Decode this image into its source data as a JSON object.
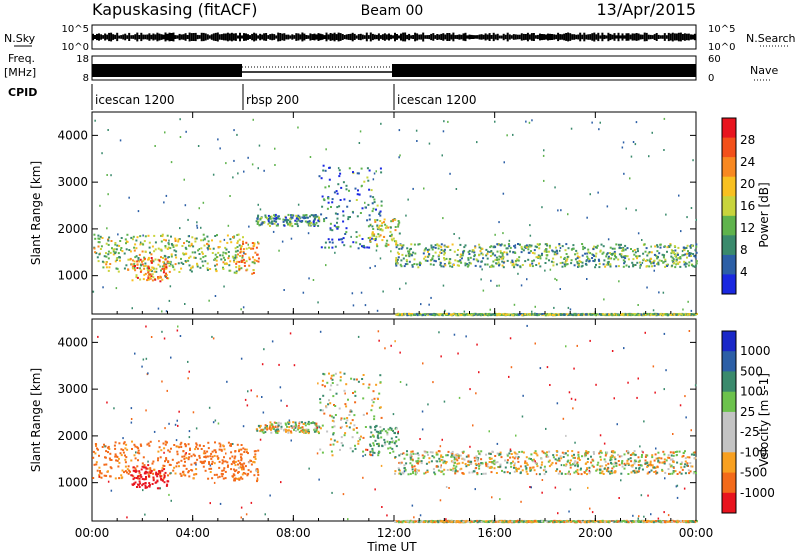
{
  "header": {
    "station": "Kapuskasing (fitACF)",
    "beam": "Beam 00",
    "date": "13/Apr/2015"
  },
  "top_panels": {
    "nsky": {
      "label": "N.Sky",
      "ticks": [
        "10^5",
        "10^0"
      ]
    },
    "nsearch": {
      "label": "N.Search",
      "ticks": [
        "10^5",
        "10^0"
      ]
    },
    "freq": {
      "label": "Freq.",
      "unit": "[MHz]",
      "ticks": [
        "18",
        "8"
      ]
    },
    "nave": {
      "label": "Nave",
      "ticks": [
        "60",
        "0"
      ]
    },
    "cpid": {
      "label": "CPID",
      "segments": [
        {
          "name": "icescan 1200",
          "start_h": 0,
          "end_h": 6
        },
        {
          "name": "rbsp 200",
          "start_h": 6,
          "end_h": 12
        },
        {
          "name": "icescan 1200",
          "start_h": 12,
          "end_h": 24
        }
      ]
    }
  },
  "power_colorbar": {
    "label": "Power [dB]",
    "ticks": [
      "28",
      "24",
      "20",
      "16",
      "12",
      "8",
      "4"
    ],
    "colors": [
      "#e8141e",
      "#f3501a",
      "#f88820",
      "#f8c020",
      "#c8d43c",
      "#5fb34c",
      "#3a8a6c",
      "#2c5fa6",
      "#1a28e0"
    ]
  },
  "velocity_colorbar": {
    "label": "Velocity [m s-1]",
    "ticks": [
      "1000",
      "500",
      "100",
      "25",
      "-25",
      "-100",
      "-500",
      "-1000"
    ],
    "colors": [
      "#1a28c8",
      "#2c5fa6",
      "#3a8a6c",
      "#6cc24c",
      "#c4c4c4",
      "#c4c4c4",
      "#f8a020",
      "#f36a1a",
      "#e8141e"
    ]
  },
  "chart_data": {
    "type": "heatmap",
    "xlabel": "Time UT",
    "ylabel": "Slant Range [km]",
    "xlim": [
      0,
      24
    ],
    "ylim": [
      180,
      4500
    ],
    "x_ticks": [
      "00:00",
      "04:00",
      "08:00",
      "12:00",
      "16:00",
      "20:00",
      "00:00"
    ],
    "y_ticks": [
      "1000",
      "2000",
      "3000",
      "4000"
    ],
    "panels": [
      {
        "name": "Power",
        "quantity": "Power [dB]",
        "range": [
          0,
          30
        ]
      },
      {
        "name": "Velocity",
        "quantity": "Velocity [m s-1]",
        "range": [
          -1000,
          1000
        ]
      }
    ],
    "scatter_features": [
      {
        "t_start": 0.0,
        "t_end": 6.0,
        "r_center": 1500,
        "r_halfwidth": 400,
        "power": 14,
        "velocity": -200
      },
      {
        "t_start": 1.5,
        "t_end": 3.0,
        "r_center": 1150,
        "r_halfwidth": 250,
        "power": 22,
        "velocity": -700
      },
      {
        "t_start": 5.6,
        "t_end": 6.6,
        "r_center": 1400,
        "r_halfwidth": 350,
        "power": 20,
        "velocity": -150
      },
      {
        "t_start": 6.5,
        "t_end": 9.0,
        "r_center": 2200,
        "r_halfwidth": 120,
        "power": 8,
        "velocity": 0
      },
      {
        "t_start": 9.0,
        "t_end": 11.5,
        "r_center": 2500,
        "r_halfwidth": 900,
        "power": 6,
        "velocity": 0
      },
      {
        "t_start": 11.0,
        "t_end": 12.2,
        "r_center": 1950,
        "r_halfwidth": 300,
        "power": 16,
        "velocity": 150
      },
      {
        "t_start": 12.0,
        "t_end": 24.0,
        "r_center": 1450,
        "r_halfwidth": 250,
        "power": 10,
        "velocity": 0
      },
      {
        "t_start": 12.0,
        "t_end": 24.0,
        "r_center": 190,
        "r_halfwidth": 15,
        "power": 12,
        "velocity": 0
      }
    ]
  }
}
